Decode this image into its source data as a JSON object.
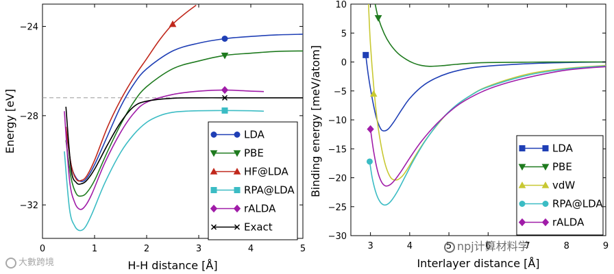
{
  "chart_data": [
    {
      "type": "line",
      "id": "left",
      "xlabel": "H-H distance [Å]",
      "ylabel": "Energy [eV]",
      "xlim": [
        0,
        5
      ],
      "ylim": [
        -33.5,
        -23
      ],
      "xticks": [
        0,
        1,
        2,
        3,
        4,
        5
      ],
      "yticks": [
        -24,
        -28,
        -32
      ],
      "reference_line": -27.2,
      "legend_location": "lower-right",
      "series": [
        {
          "name": "LDA",
          "color": "#1f3fb5",
          "marker": "circle",
          "x": [
            0.45,
            0.55,
            0.65,
            0.75,
            0.85,
            1.0,
            1.25,
            1.5,
            1.75,
            2.0,
            2.5,
            3.0,
            3.5,
            4.0,
            4.5,
            5.0
          ],
          "y": [
            -28.6,
            -30.2,
            -30.8,
            -30.95,
            -30.8,
            -30.2,
            -28.9,
            -27.6,
            -26.6,
            -25.9,
            -25.1,
            -24.75,
            -24.55,
            -24.45,
            -24.38,
            -24.35
          ],
          "marker_at": [
            3.5,
            -24.55
          ]
        },
        {
          "name": "PBE",
          "color": "#1e7a1e",
          "marker": "triangle-down",
          "x": [
            0.45,
            0.55,
            0.65,
            0.75,
            0.85,
            1.0,
            1.25,
            1.5,
            1.75,
            2.0,
            2.5,
            3.0,
            3.5,
            4.0,
            4.5,
            5.0
          ],
          "y": [
            -29.1,
            -30.8,
            -31.5,
            -31.6,
            -31.45,
            -30.9,
            -29.6,
            -28.4,
            -27.4,
            -26.7,
            -25.9,
            -25.55,
            -25.3,
            -25.2,
            -25.12,
            -25.1
          ],
          "marker_at": [
            3.5,
            -25.3
          ]
        },
        {
          "name": "HF@LDA",
          "color": "#c0281c",
          "marker": "triangle-up",
          "x": [
            0.45,
            0.55,
            0.65,
            0.75,
            0.85,
            1.0,
            1.25,
            1.5,
            1.75,
            2.0,
            2.25,
            2.5,
            2.75,
            2.95
          ],
          "y": [
            -28.5,
            -30.2,
            -30.85,
            -30.9,
            -30.7,
            -30.0,
            -28.5,
            -27.3,
            -26.3,
            -25.45,
            -24.6,
            -23.9,
            -23.4,
            -23.05
          ],
          "marker_at": [
            2.5,
            -23.9
          ]
        },
        {
          "name": "RPA@LDA",
          "color": "#3bbcc4",
          "marker": "square",
          "x": [
            0.42,
            0.52,
            0.62,
            0.72,
            0.82,
            0.95,
            1.2,
            1.5,
            1.75,
            2.0,
            2.25,
            2.5,
            2.75,
            3.0,
            3.5,
            4.0,
            4.25
          ],
          "y": [
            -29.6,
            -32.2,
            -32.95,
            -33.15,
            -33.0,
            -32.4,
            -31.0,
            -29.65,
            -28.85,
            -28.3,
            -28.0,
            -27.85,
            -27.8,
            -27.78,
            -27.77,
            -27.78,
            -27.8
          ],
          "marker_at": [
            3.5,
            -27.77
          ]
        },
        {
          "name": "rALDA",
          "color": "#a01ca8",
          "marker": "diamond",
          "x": [
            0.42,
            0.52,
            0.62,
            0.72,
            0.82,
            0.95,
            1.2,
            1.5,
            1.75,
            2.0,
            2.5,
            3.0,
            3.5,
            4.0,
            4.25
          ],
          "y": [
            -27.8,
            -30.9,
            -31.9,
            -32.2,
            -32.05,
            -31.5,
            -30.1,
            -28.75,
            -27.9,
            -27.4,
            -27.05,
            -26.9,
            -26.85,
            -26.9,
            -26.92
          ],
          "marker_at": [
            3.5,
            -26.85
          ]
        },
        {
          "name": "Exact",
          "color": "#000000",
          "marker": "x",
          "x": [
            0.45,
            0.55,
            0.65,
            0.75,
            0.85,
            1.0,
            1.25,
            1.5,
            1.75,
            2.0,
            2.5,
            3.0,
            3.5,
            4.0,
            4.5,
            5.0
          ],
          "y": [
            -27.6,
            -30.4,
            -31.0,
            -31.05,
            -30.9,
            -30.4,
            -29.3,
            -28.3,
            -27.6,
            -27.35,
            -27.22,
            -27.2,
            -27.2,
            -27.2,
            -27.2,
            -27.2
          ],
          "marker_at": [
            3.5,
            -27.2
          ]
        }
      ]
    },
    {
      "type": "line",
      "id": "right",
      "xlabel": "Interlayer distance [Å]",
      "ylabel": "Binding energy [meV/atom]",
      "xlim": [
        2.5,
        9
      ],
      "ylim": [
        -30,
        10
      ],
      "xticks": [
        3,
        4,
        5,
        6,
        7,
        8,
        9
      ],
      "yticks": [
        10,
        5,
        0,
        -5,
        -10,
        -15,
        -20,
        -25,
        -30
      ],
      "legend_location": "lower-right",
      "series": [
        {
          "name": "LDA",
          "color": "#1f3fb5",
          "marker": "square",
          "x": [
            2.88,
            2.95,
            3.05,
            3.15,
            3.25,
            3.33,
            3.45,
            3.6,
            3.8,
            4.0,
            4.3,
            4.6,
            5.0,
            5.5,
            6.0,
            7.0,
            8.0,
            9.0
          ],
          "y": [
            1.2,
            -2.5,
            -6.5,
            -9.6,
            -11.4,
            -11.9,
            -11.6,
            -10.3,
            -8.2,
            -6.3,
            -4.3,
            -3.0,
            -1.9,
            -1.1,
            -0.7,
            -0.3,
            -0.1,
            0.0
          ],
          "marker_at": [
            2.88,
            1.2
          ]
        },
        {
          "name": "PBE",
          "color": "#1e7a1e",
          "marker": "triangle-down",
          "x": [
            3.12,
            3.2,
            3.35,
            3.5,
            3.7,
            3.9,
            4.1,
            4.3,
            4.5,
            4.8,
            5.2,
            5.6,
            6.0,
            7.0,
            8.0,
            9.0
          ],
          "y": [
            10.0,
            7.6,
            4.9,
            3.1,
            1.5,
            0.5,
            -0.2,
            -0.6,
            -0.75,
            -0.65,
            -0.4,
            -0.2,
            -0.1,
            -0.03,
            0.0,
            0.0
          ],
          "marker_at": [
            3.2,
            7.6
          ]
        },
        {
          "name": "vdW",
          "color": "#c8c832",
          "marker": "triangle-up",
          "x": [
            2.95,
            3.0,
            3.1,
            3.2,
            3.35,
            3.5,
            3.65,
            3.8,
            3.95,
            4.2,
            4.5,
            5.0,
            5.5,
            6.0,
            7.0,
            8.0,
            9.0
          ],
          "y": [
            10.0,
            3.0,
            -5.5,
            -11.5,
            -17.0,
            -19.8,
            -20.4,
            -19.8,
            -18.4,
            -15.6,
            -12.6,
            -8.6,
            -6.0,
            -4.2,
            -2.1,
            -1.1,
            -0.6
          ],
          "marker_at": [
            3.08,
            -5.5
          ]
        },
        {
          "name": "RPA@LDA",
          "color": "#3bbcc4",
          "marker": "circle",
          "x": [
            2.98,
            3.05,
            3.15,
            3.25,
            3.35,
            3.45,
            3.55,
            3.7,
            3.9,
            4.1,
            4.4,
            4.8,
            5.2,
            5.6,
            6.0,
            7.0,
            8.0,
            9.0
          ],
          "y": [
            -17.2,
            -20.2,
            -22.8,
            -24.2,
            -24.7,
            -24.5,
            -23.8,
            -22.2,
            -19.6,
            -17.0,
            -13.6,
            -10.0,
            -7.4,
            -5.6,
            -4.3,
            -2.3,
            -1.2,
            -0.7
          ],
          "marker_at": [
            2.98,
            -17.2
          ]
        },
        {
          "name": "rALDA",
          "color": "#a01ca8",
          "marker": "diamond",
          "x": [
            3.0,
            3.08,
            3.18,
            3.28,
            3.38,
            3.5,
            3.62,
            3.8,
            4.0,
            4.3,
            4.7,
            5.2,
            5.7,
            6.2,
            7.0,
            8.0,
            9.0
          ],
          "y": [
            -11.6,
            -15.4,
            -18.8,
            -20.7,
            -21.4,
            -21.2,
            -20.4,
            -18.7,
            -16.6,
            -13.7,
            -10.6,
            -7.6,
            -5.6,
            -4.2,
            -2.7,
            -1.4,
            -0.8
          ],
          "marker_at": [
            3.0,
            -11.6
          ]
        }
      ]
    }
  ],
  "watermarks": {
    "left": "大數跨境",
    "right": "npj计算材料学"
  }
}
